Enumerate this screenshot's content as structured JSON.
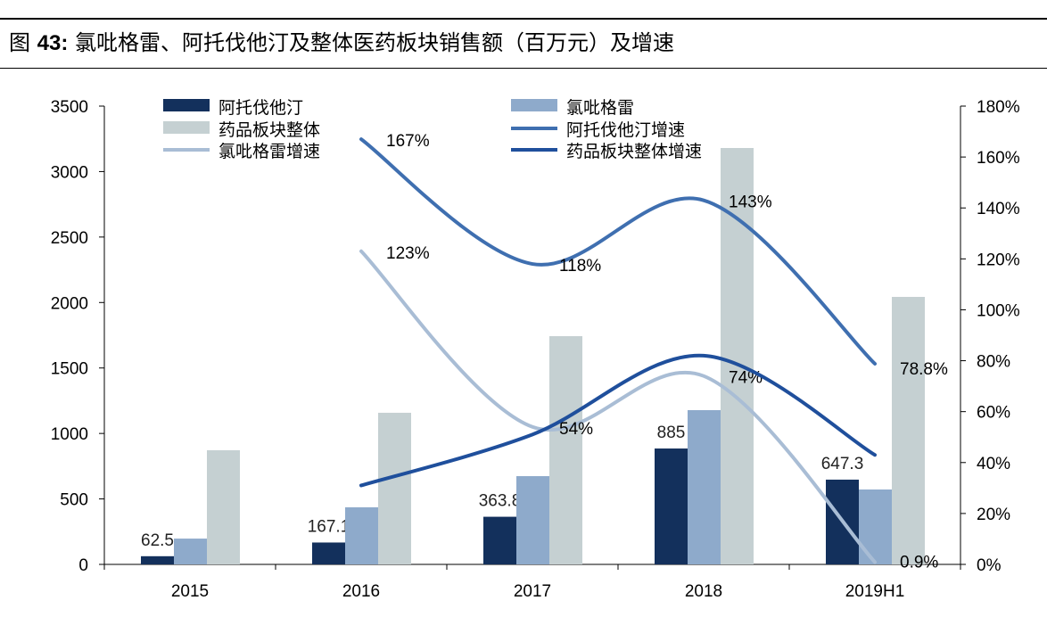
{
  "header": {
    "prefix": "图",
    "number": "43:",
    "text": "氯吡格雷、阿托伐他汀及整体医药板块销售额（百万元）及增速"
  },
  "chart_data": {
    "type": "bar",
    "title": "氯吡格雷、阿托伐他汀及整体医药板块销售额（百万元）及增速",
    "categories": [
      "2015",
      "2016",
      "2017",
      "2018",
      "2019H1"
    ],
    "ylim": [
      0,
      3500
    ],
    "yticks": [
      "0",
      "500",
      "1000",
      "1500",
      "2000",
      "2500",
      "3000",
      "3500"
    ],
    "y2lim": [
      0,
      180
    ],
    "y2ticks": [
      "0%",
      "20%",
      "40%",
      "60%",
      "80%",
      "100%",
      "120%",
      "140%",
      "160%",
      "180%"
    ],
    "grid": false,
    "legend": "top",
    "series": [
      {
        "name": "阿托伐他汀",
        "kind": "bar",
        "axis": "left",
        "color": "#13305c",
        "values": [
          62.5,
          167.1,
          363.8,
          885,
          647.3
        ],
        "labels": [
          "62.5",
          "167.1",
          "363.8",
          "885",
          "647.3"
        ]
      },
      {
        "name": "氯吡格雷",
        "kind": "bar",
        "axis": "left",
        "color": "#8eaacb",
        "values": [
          197,
          436,
          674,
          1178,
          572
        ]
      },
      {
        "name": "药品板块整体",
        "kind": "bar",
        "axis": "left",
        "color": "#c5d0d2",
        "values": [
          872,
          1158,
          1743,
          3180,
          2043
        ]
      },
      {
        "name": "阿托伐他汀增速",
        "kind": "line",
        "axis": "right",
        "color": "#3f6fb0",
        "values": [
          null,
          167,
          118,
          143,
          78.8
        ],
        "labels": [
          null,
          "167%",
          "118%",
          "143%",
          "78.8%"
        ]
      },
      {
        "name": "氯吡格雷增速",
        "kind": "line",
        "axis": "right",
        "color": "#a9bdd5",
        "values": [
          null,
          123,
          54,
          74,
          0.9
        ],
        "labels": [
          null,
          "123%",
          "54%",
          "74%",
          "0.9%"
        ]
      },
      {
        "name": "药品板块整体增速",
        "kind": "line",
        "axis": "right",
        "color": "#1f4f9c",
        "values": [
          null,
          31,
          51,
          82,
          43
        ]
      }
    ]
  }
}
